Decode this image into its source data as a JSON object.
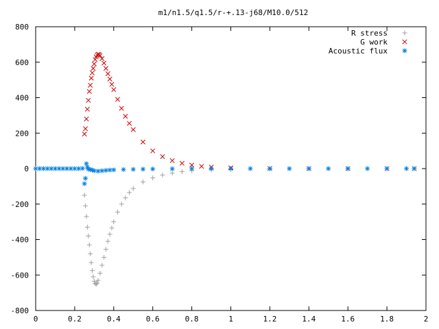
{
  "chart_data": {
    "type": "scatter",
    "title": "m1/n1.5/q1.5/r-+.13-j68/M10.0/512",
    "xlabel": "",
    "ylabel": "",
    "xlim": [
      0,
      2
    ],
    "ylim": [
      -800,
      800
    ],
    "x_ticks": [
      0,
      0.2,
      0.4,
      0.6,
      0.8,
      1,
      1.2,
      1.4,
      1.6,
      1.8,
      2
    ],
    "x_tick_labels": [
      "0",
      "0.2",
      "0.4",
      "0.6",
      "0.8",
      "1",
      "1.2",
      "1.4",
      "1.6",
      "1.8",
      "2"
    ],
    "y_ticks": [
      -800,
      -600,
      -400,
      -200,
      0,
      200,
      400,
      600,
      800
    ],
    "y_tick_labels": [
      "-800",
      "-600",
      "-400",
      "-200",
      "0",
      "200",
      "400",
      "600",
      "800"
    ],
    "grid": false,
    "legend_position": "top-right",
    "series": [
      {
        "name": "R stress",
        "marker": "plus",
        "color": "#a0a0a0",
        "x": [
          0.25,
          0.255,
          0.26,
          0.265,
          0.27,
          0.275,
          0.28,
          0.285,
          0.29,
          0.295,
          0.3,
          0.305,
          0.31,
          0.315,
          0.32,
          0.33,
          0.34,
          0.35,
          0.36,
          0.37,
          0.38,
          0.39,
          0.4,
          0.42,
          0.44,
          0.46,
          0.48,
          0.5,
          0.55,
          0.6,
          0.65,
          0.7,
          0.75,
          0.8,
          0.9,
          1.0,
          1.2,
          1.4,
          1.6,
          1.8,
          1.94
        ],
        "y": [
          -150,
          -210,
          -270,
          -330,
          -380,
          -430,
          -480,
          -530,
          -575,
          -610,
          -635,
          -648,
          -652,
          -645,
          -630,
          -590,
          -545,
          -500,
          -455,
          -410,
          -370,
          -335,
          -300,
          -245,
          -200,
          -165,
          -135,
          -112,
          -75,
          -52,
          -36,
          -25,
          -17,
          -12,
          -7,
          -4,
          -2,
          -1,
          -1,
          0,
          0
        ]
      },
      {
        "name": "G work",
        "marker": "cross",
        "color": "#cc0000",
        "x": [
          0.25,
          0.255,
          0.26,
          0.265,
          0.27,
          0.275,
          0.28,
          0.285,
          0.29,
          0.295,
          0.3,
          0.305,
          0.31,
          0.315,
          0.32,
          0.325,
          0.33,
          0.34,
          0.35,
          0.36,
          0.37,
          0.38,
          0.39,
          0.4,
          0.42,
          0.44,
          0.46,
          0.48,
          0.5,
          0.55,
          0.6,
          0.65,
          0.7,
          0.75,
          0.8,
          0.85,
          0.9,
          1.0,
          1.2,
          1.4,
          1.6,
          1.8,
          1.94
        ],
        "y": [
          195,
          225,
          280,
          335,
          385,
          435,
          470,
          510,
          540,
          565,
          590,
          615,
          630,
          640,
          645,
          643,
          638,
          620,
          595,
          565,
          535,
          505,
          475,
          445,
          390,
          340,
          295,
          255,
          220,
          150,
          100,
          68,
          45,
          30,
          20,
          13,
          9,
          4,
          1,
          0,
          0,
          0,
          0
        ]
      },
      {
        "name": "Acoustic flux",
        "marker": "star",
        "color": "#0080e0",
        "x": [
          0.0,
          0.02,
          0.04,
          0.06,
          0.08,
          0.1,
          0.12,
          0.14,
          0.16,
          0.18,
          0.2,
          0.22,
          0.24,
          0.25,
          0.255,
          0.26,
          0.265,
          0.27,
          0.28,
          0.29,
          0.3,
          0.32,
          0.34,
          0.36,
          0.38,
          0.4,
          0.45,
          0.5,
          0.55,
          0.6,
          0.7,
          0.8,
          0.9,
          1.0,
          1.1,
          1.2,
          1.3,
          1.4,
          1.5,
          1.6,
          1.7,
          1.8,
          1.9,
          1.94
        ],
        "y": [
          0,
          0,
          0,
          0,
          0,
          0,
          0,
          0,
          0,
          0,
          0,
          0,
          1,
          -85,
          -55,
          28,
          8,
          -3,
          -5,
          -8,
          -12,
          -14,
          -12,
          -10,
          -8,
          -7,
          -5,
          -4,
          -3,
          -2,
          -1,
          0,
          0,
          0,
          0,
          0,
          0,
          0,
          0,
          0,
          0,
          0,
          0,
          0
        ]
      }
    ]
  }
}
